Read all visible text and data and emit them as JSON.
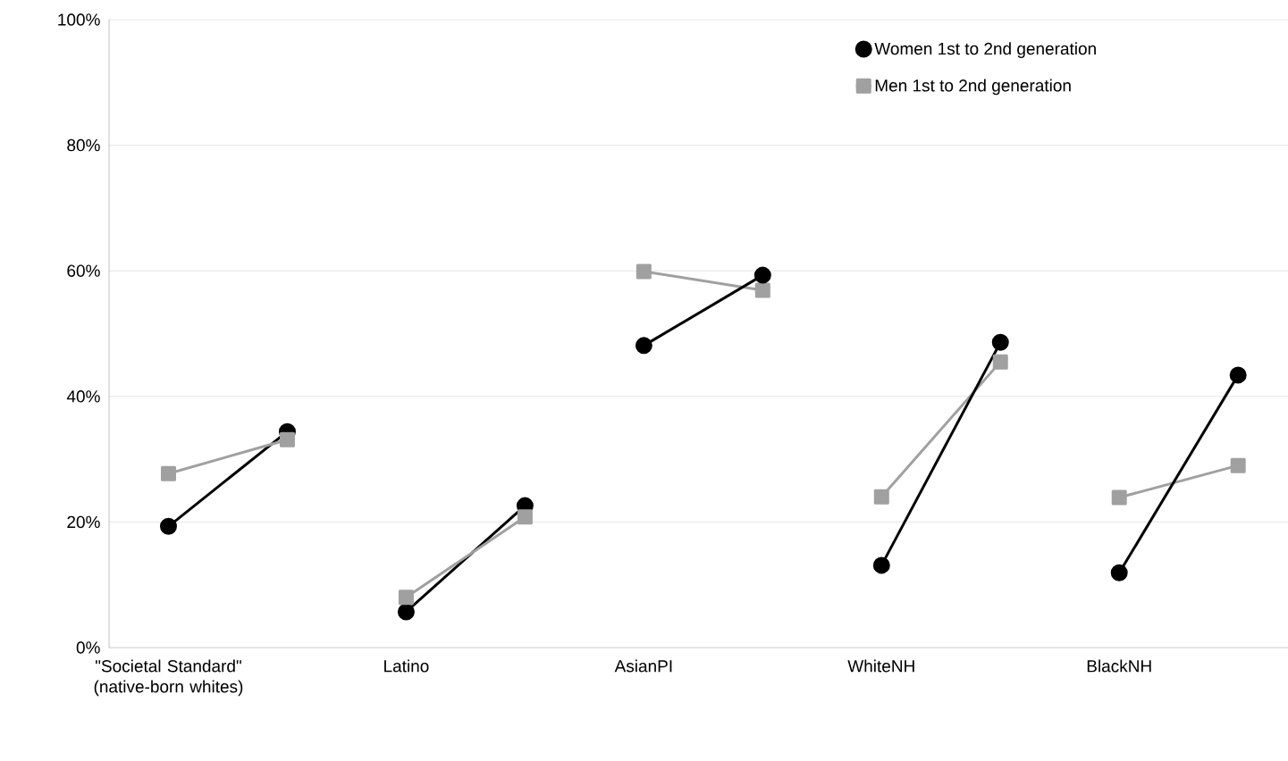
{
  "chart_data": {
    "type": "line",
    "categories": [
      "\"Societal Standard\" (native-born whites)",
      null,
      "Latino",
      null,
      "AsianPI",
      null,
      "WhiteNH",
      null,
      "BlackNH",
      null
    ],
    "ylim": [
      0,
      100
    ],
    "yticks": [
      {
        "value": 0,
        "label": "0%"
      },
      {
        "value": 20,
        "label": "20%"
      },
      {
        "value": 40,
        "label": "40%"
      },
      {
        "value": 60,
        "label": "60%"
      },
      {
        "value": 80,
        "label": "80%"
      },
      {
        "value": 100,
        "label": "100%"
      }
    ],
    "grid": "y",
    "legend": "top right",
    "series": [
      {
        "name": "Women 1st to 2nd generation",
        "color": "#000000",
        "marker": "circle",
        "values": [
          19.3,
          34.4,
          null,
          null,
          null,
          null,
          null,
          null,
          null,
          null
        ]
      },
      {
        "name": "Men 1st to 2nd generation",
        "color": "#a0a0a0",
        "marker": "square",
        "values": [
          27.7,
          33.1,
          null,
          null,
          null,
          null,
          null,
          null,
          null,
          null
        ]
      },
      {
        "color": "#000000",
        "marker": "circle",
        "values": [
          null,
          null,
          5.7,
          22.6,
          null,
          null,
          null,
          null,
          null,
          null
        ]
      },
      {
        "color": "#a0a0a0",
        "marker": "square",
        "values": [
          null,
          null,
          8.0,
          20.8,
          null,
          null,
          null,
          null,
          null,
          null
        ]
      },
      {
        "color": "#a0a0a0",
        "marker": "square",
        "values": [
          null,
          null,
          null,
          null,
          59.9,
          56.9,
          null,
          null,
          null,
          null
        ]
      },
      {
        "color": "#000000",
        "marker": "circle",
        "values": [
          null,
          null,
          null,
          null,
          48.1,
          59.3,
          null,
          null,
          null,
          null
        ]
      },
      {
        "color": "#a0a0a0",
        "marker": "square",
        "values": [
          null,
          null,
          null,
          null,
          null,
          null,
          24.0,
          45.5,
          null,
          null
        ]
      },
      {
        "color": "#000000",
        "marker": "circle",
        "values": [
          null,
          null,
          null,
          null,
          null,
          null,
          13.1,
          48.6,
          null,
          null
        ]
      },
      {
        "color": "#a0a0a0",
        "marker": "square",
        "values": [
          null,
          null,
          null,
          null,
          null,
          null,
          null,
          null,
          23.9,
          29.0
        ]
      },
      {
        "color": "#000000",
        "marker": "circle",
        "values": [
          null,
          null,
          null,
          null,
          null,
          null,
          null,
          null,
          11.9,
          43.4
        ]
      }
    ]
  }
}
